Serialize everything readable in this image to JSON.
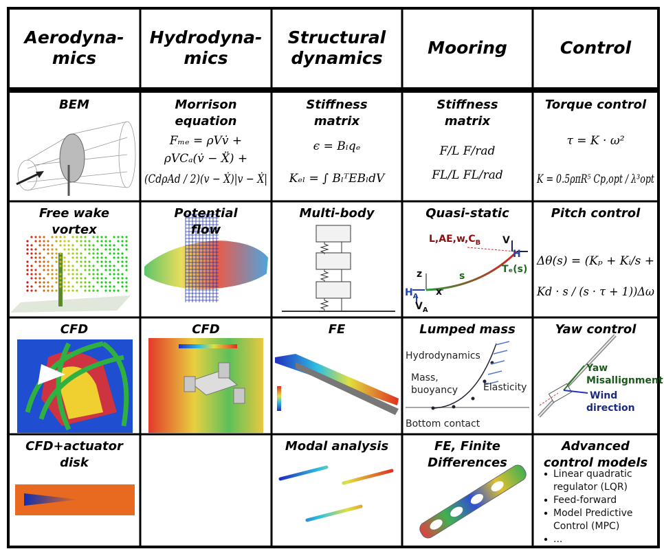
{
  "header": [
    [
      "Aerodyna-",
      "mics"
    ],
    [
      "Hydrodyna-",
      "mics"
    ],
    [
      "Structural",
      "dynamics"
    ],
    [
      "Mooring"
    ],
    [
      "Control"
    ]
  ],
  "rows": [
    [
      {
        "title": [
          "BEM"
        ]
      },
      {
        "title": [
          "Morrison",
          "equation"
        ],
        "formula": [
          "Fₘₑ = ρVv̇ +",
          "ρVCₐ(v̇ − Ẍ) +",
          "(CdρAd / 2)(v − Ẋ)|v − Ẋ|"
        ]
      },
      {
        "title": [
          "Stiffness",
          "matrix"
        ],
        "formula": [
          "ϵ = Bₗqₑ",
          "Kₑₗ = ∫ BₗᵀEBₗdV"
        ]
      },
      {
        "title": [
          "Stiffness",
          "matrix"
        ],
        "formula": [
          "F/L      F/rad",
          "FL/L    FL/rad"
        ]
      },
      {
        "title": [
          "Torque control"
        ],
        "formula": [
          "τ = K · ω²",
          "K = 0.5ρπR⁵ Cp,opt / λ³opt"
        ]
      }
    ],
    [
      {
        "title": [
          "Free wake",
          "vortex"
        ]
      },
      {
        "title": [
          "Potential",
          "flow"
        ]
      },
      {
        "title": [
          "Multi-body"
        ]
      },
      {
        "title": [
          "Quasi-static"
        ],
        "labels": [
          {
            "text": "L,AE,w,C",
            "sub": "B"
          },
          {
            "text": "V"
          },
          {
            "text": "H"
          },
          {
            "text": "Tₑ(s)"
          },
          {
            "text": "s"
          },
          {
            "text": "z"
          },
          {
            "text": "x"
          },
          {
            "text": "H",
            "sub": "A"
          },
          {
            "text": "V",
            "sub": "A"
          }
        ]
      },
      {
        "title": [
          "Pitch control"
        ],
        "formula": [
          "Δθ(s) = (Kₚ + Kᵢ/s +",
          "Kd · s / (s · τ + 1))Δω"
        ]
      }
    ],
    [
      {
        "title": [
          "CFD"
        ]
      },
      {
        "title": [
          "CFD"
        ]
      },
      {
        "title": [
          "FE"
        ]
      },
      {
        "title": [
          "Lumped mass"
        ],
        "labels": [
          {
            "text": "Hydrodynamics"
          },
          {
            "text": "Mass,"
          },
          {
            "text": "buoyancy"
          },
          {
            "text": "Elasticity"
          },
          {
            "text": "Bottom contact"
          }
        ]
      },
      {
        "title": [
          "Yaw control"
        ],
        "labels": [
          {
            "text": "Yaw"
          },
          {
            "text": "Misallignment"
          },
          {
            "text": "Wind"
          },
          {
            "text": "direction"
          }
        ]
      }
    ],
    [
      {
        "title": [
          "CFD+actuator",
          "disk"
        ]
      },
      null,
      {
        "title": [
          "Modal analysis"
        ]
      },
      {
        "title": [
          "FE, Finite",
          "Differences"
        ]
      },
      {
        "title": [
          "Advanced",
          "control models"
        ],
        "bullets": [
          [
            "Linear quadratic",
            "regulator (LQR)"
          ],
          [
            "Feed-forward"
          ],
          [
            "Model Predictive",
            "Control (MPC)"
          ],
          [
            "..."
          ]
        ]
      }
    ]
  ]
}
